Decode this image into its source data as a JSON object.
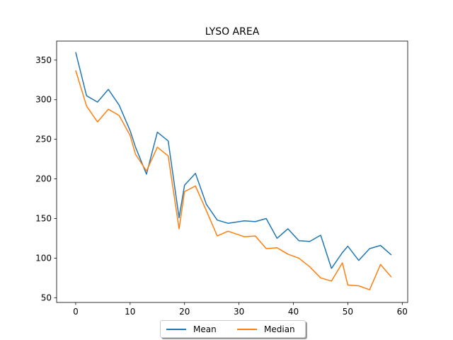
{
  "chart_data": {
    "type": "line",
    "title": "LYSO AREA",
    "xlabel": "",
    "ylabel": "",
    "xlim": [
      -3.5,
      61
    ],
    "ylim": [
      44,
      374
    ],
    "xticks": [
      0,
      10,
      20,
      30,
      40,
      50,
      60
    ],
    "yticks": [
      50,
      100,
      150,
      200,
      250,
      300,
      350
    ],
    "grid": false,
    "legend_position": "bottom-center",
    "x": [
      0,
      2,
      4,
      6,
      8,
      10,
      11,
      13,
      15,
      17,
      19,
      20,
      22,
      24,
      26,
      28,
      31,
      33,
      35,
      37,
      39,
      41,
      43,
      45,
      47,
      49,
      50,
      52,
      54,
      56,
      58
    ],
    "series": [
      {
        "name": "Mean",
        "color": "#1f77b4",
        "values": [
          360,
          305,
          297,
          313,
          293,
          261,
          240,
          206,
          259,
          248,
          151,
          192,
          207,
          168,
          148,
          144,
          147,
          146,
          150,
          125,
          137,
          122,
          121,
          129,
          87,
          107,
          115,
          97,
          112,
          116,
          104
        ]
      },
      {
        "name": "Median",
        "color": "#ff7f0e",
        "values": [
          337,
          292,
          272,
          288,
          280,
          255,
          231,
          210,
          240,
          229,
          137,
          184,
          191,
          160,
          128,
          134,
          127,
          128,
          112,
          113,
          105,
          100,
          89,
          75,
          71,
          94,
          66,
          65,
          60,
          92,
          76
        ]
      }
    ]
  }
}
